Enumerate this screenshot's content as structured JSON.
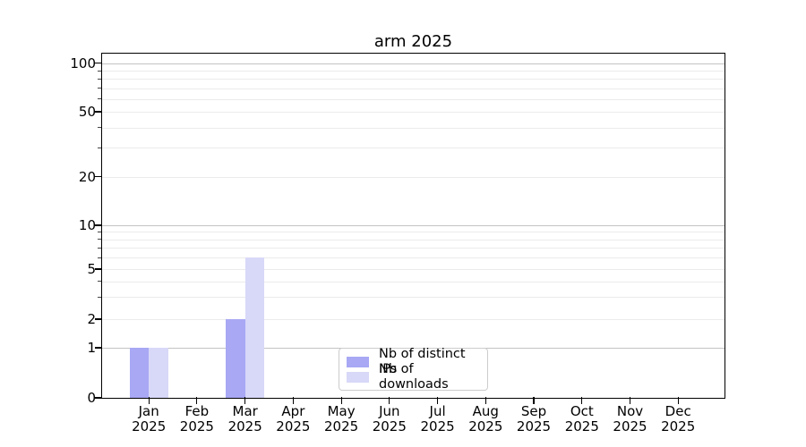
{
  "chart_data": {
    "type": "bar",
    "title": "arm 2025",
    "categories": [
      "Jan 2025",
      "Feb 2025",
      "Mar 2025",
      "Apr 2025",
      "May 2025",
      "Jun 2025",
      "Jul 2025",
      "Aug 2025",
      "Sep 2025",
      "Oct 2025",
      "Nov 2025",
      "Dec 2025"
    ],
    "series": [
      {
        "name": "Nb of distinct IPs",
        "color": "#a8a8f5",
        "values": [
          1,
          0,
          2,
          0,
          0,
          0,
          0,
          0,
          0,
          0,
          0,
          0
        ]
      },
      {
        "name": "Nb of downloads",
        "color": "#d8d8f8",
        "values": [
          1,
          0,
          6,
          0,
          0,
          0,
          0,
          0,
          0,
          0,
          0,
          0
        ]
      }
    ],
    "xlabel": "",
    "ylabel": "",
    "yticks": [
      0,
      1,
      2,
      5,
      10,
      20,
      50,
      100
    ],
    "ylim": [
      0,
      115
    ],
    "scale": "linear from 0 to 1, logarithmic above 1",
    "grid": {
      "major_lines": [
        1,
        10,
        100
      ],
      "minor_lines": [
        2,
        3,
        4,
        5,
        6,
        7,
        8,
        9,
        20,
        30,
        40,
        50,
        60,
        70,
        80,
        90
      ]
    },
    "legend": {
      "position": "lower center"
    },
    "colors": {
      "spine": "#000000",
      "grid_major": "#c3c3c3",
      "grid_minor": "#ebebeb",
      "legend_border": "#cccccc"
    }
  }
}
